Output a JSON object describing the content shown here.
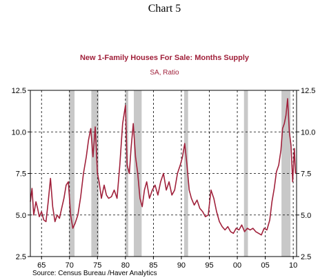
{
  "header": {
    "chart_number": "Chart 5",
    "title": "New 1-Family Houses For Sale: Months Supply",
    "subtitle": "SA, Ratio"
  },
  "footer": {
    "source": "Source:  Census Bureau /Haver Analytics"
  },
  "colors": {
    "series": "#a0203a",
    "recession": "#c8c8c8"
  },
  "chart_data": {
    "type": "line",
    "title": "New 1-Family Houses For Sale: Months Supply",
    "subtitle": "SA, Ratio",
    "x_ticks": [
      "65",
      "70",
      "75",
      "80",
      "85",
      "90",
      "95",
      "00",
      "05",
      "10"
    ],
    "x_tick_years": [
      1965,
      1970,
      1975,
      1980,
      1985,
      1990,
      1995,
      2000,
      2005,
      2010
    ],
    "xlim": [
      1963.0,
      2010.6
    ],
    "y_ticks": [
      "2.5",
      "5.0",
      "7.5",
      "10.0",
      "12.5"
    ],
    "y_tick_values": [
      2.5,
      5.0,
      7.5,
      10.0,
      12.5
    ],
    "ylim": [
      2.5,
      12.5
    ],
    "grid": true,
    "recessions": [
      [
        1969.9,
        1970.9
      ],
      [
        1973.9,
        1975.2
      ],
      [
        1980.0,
        1980.5
      ],
      [
        1981.5,
        1982.9
      ],
      [
        1990.5,
        1991.2
      ],
      [
        2001.2,
        2001.9
      ],
      [
        2007.9,
        2009.5
      ]
    ],
    "series": [
      {
        "x": [
          1963.0,
          1963.3,
          1963.6,
          1964.0,
          1964.3,
          1964.6,
          1965.0,
          1965.4,
          1965.8,
          1966.2,
          1966.6,
          1967.0,
          1967.4,
          1967.8,
          1968.2,
          1968.6,
          1969.0,
          1969.4,
          1969.8,
          1970.2,
          1970.6,
          1971.0,
          1971.5,
          1972.0,
          1972.5,
          1973.0,
          1973.4,
          1973.8,
          1974.2,
          1974.6,
          1975.0,
          1975.3,
          1975.7,
          1976.2,
          1976.6,
          1977.0,
          1977.5,
          1978.0,
          1978.5,
          1979.0,
          1979.5,
          1980.0,
          1980.3,
          1980.7,
          1981.0,
          1981.4,
          1981.8,
          1982.2,
          1982.6,
          1983.0,
          1983.4,
          1983.8,
          1984.3,
          1984.8,
          1985.3,
          1985.8,
          1986.3,
          1986.8,
          1987.3,
          1987.8,
          1988.3,
          1988.8,
          1989.3,
          1989.8,
          1990.2,
          1990.6,
          1991.0,
          1991.4,
          1991.8,
          1992.3,
          1992.8,
          1993.3,
          1993.8,
          1994.3,
          1994.8,
          1995.3,
          1995.8,
          1996.3,
          1996.8,
          1997.3,
          1997.8,
          1998.3,
          1998.8,
          1999.3,
          1999.8,
          2000.3,
          2000.8,
          2001.3,
          2001.8,
          2002.3,
          2002.8,
          2003.3,
          2003.8,
          2004.3,
          2004.8,
          2005.3,
          2005.8,
          2006.2,
          2006.6,
          2007.0,
          2007.4,
          2007.8,
          2008.1,
          2008.4,
          2008.7,
          2009.0,
          2009.3,
          2009.6,
          2009.9,
          2010.2,
          2010.4
        ],
        "values": [
          5.8,
          6.6,
          5.0,
          5.8,
          5.4,
          4.9,
          5.2,
          4.7,
          4.6,
          5.8,
          7.2,
          5.5,
          4.6,
          5.0,
          4.8,
          5.4,
          6.0,
          6.8,
          7.0,
          5.0,
          4.2,
          4.5,
          5.0,
          6.1,
          7.5,
          8.5,
          9.5,
          10.2,
          8.5,
          10.3,
          7.5,
          7.0,
          6.0,
          6.8,
          6.2,
          6.0,
          6.1,
          6.5,
          6.0,
          8.0,
          10.5,
          11.6,
          8.0,
          7.5,
          9.0,
          10.5,
          8.5,
          7.5,
          6.0,
          5.5,
          6.5,
          7.0,
          6.0,
          6.5,
          6.8,
          6.2,
          7.0,
          7.5,
          6.5,
          7.0,
          6.2,
          6.5,
          7.5,
          8.0,
          8.5,
          9.3,
          8.0,
          6.5,
          6.0,
          5.6,
          5.9,
          5.4,
          5.2,
          4.9,
          5.0,
          6.5,
          6.0,
          5.2,
          4.6,
          4.3,
          4.1,
          4.3,
          4.0,
          3.9,
          4.2,
          4.1,
          4.4,
          4.0,
          4.2,
          4.1,
          4.2,
          4.0,
          3.9,
          3.8,
          4.2,
          4.1,
          4.7,
          5.8,
          6.6,
          7.6,
          8.0,
          8.9,
          10.2,
          10.5,
          11.0,
          12.0,
          10.0,
          9.2,
          7.0,
          9.0,
          7.5
        ]
      }
    ]
  }
}
